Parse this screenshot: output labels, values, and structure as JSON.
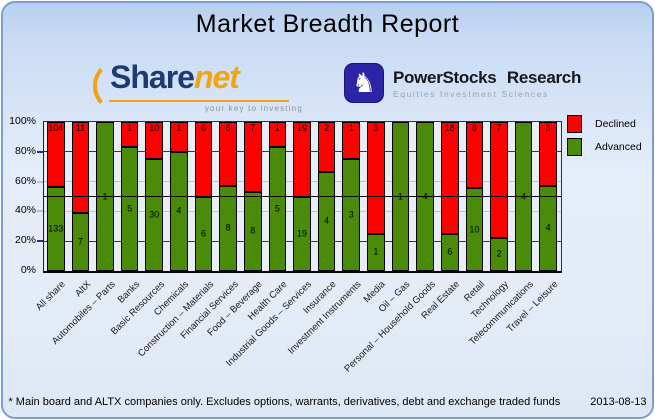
{
  "header": {
    "title": "Market Breadth Report"
  },
  "logos": {
    "sharenet": {
      "name_part1": "Share",
      "name_part2": "net",
      "tagline": "your key to investing"
    },
    "powerstocks": {
      "title": "PowerStocks Research",
      "subtitle": "Equities Investment Sciences",
      "icon": "knight-icon",
      "icon_glyph": "♞"
    }
  },
  "legend": [
    {
      "label": "Declined",
      "color": "#fb0300"
    },
    {
      "label": "Advanced",
      "color": "#4a8c0a"
    }
  ],
  "chart_data": {
    "type": "bar",
    "stacked": true,
    "normalized_to_percent": true,
    "title": "Market Breadth Report",
    "categories": [
      "All share",
      "AltX",
      "Automobiles – Parts",
      "Banks",
      "Basic Resources",
      "Chemicals",
      "Construction – Materials",
      "Financial Services",
      "Food – Beverage",
      "Health Care",
      "Industrial Goods – Services",
      "Insurance",
      "Investment Instruments",
      "Media",
      "Oil – Gas",
      "Personal – Household Goods",
      "Real Estate",
      "Retail",
      "Technology",
      "Telecommunications",
      "Travel – Leisure"
    ],
    "series": [
      {
        "name": "Declined",
        "color": "#fb0300",
        "values": [
          104,
          11,
          0,
          1,
          10,
          1,
          6,
          6,
          7,
          1,
          19,
          2,
          1,
          3,
          0,
          0,
          18,
          8,
          7,
          0,
          3
        ]
      },
      {
        "name": "Advanced",
        "color": "#4a8c0a",
        "values": [
          133,
          7,
          1,
          5,
          30,
          4,
          6,
          8,
          8,
          5,
          19,
          4,
          3,
          1,
          1,
          4,
          6,
          10,
          2,
          4,
          4
        ]
      }
    ],
    "value_axis": {
      "ticks": [
        "0%",
        "20%",
        "40%",
        "60%",
        "80%",
        "100%"
      ],
      "min": 0,
      "max": 100
    },
    "gridlines": [
      {
        "pct": 20,
        "color": "#2a2a8f"
      },
      {
        "pct": 40,
        "color": "#bcc2cc"
      },
      {
        "pct": 60,
        "color": "#bcc2cc"
      },
      {
        "pct": 80,
        "color": "#2a2a8f"
      }
    ],
    "reference_line": {
      "pct": 50,
      "color": "#000000"
    },
    "legend_position": "right",
    "plot_background": "#e9edf5"
  },
  "footer": {
    "note": "* Main board and ALTX companies only. Excludes options, warrants, derivatives, debt and exchange traded funds",
    "date": "2013-08-13"
  }
}
